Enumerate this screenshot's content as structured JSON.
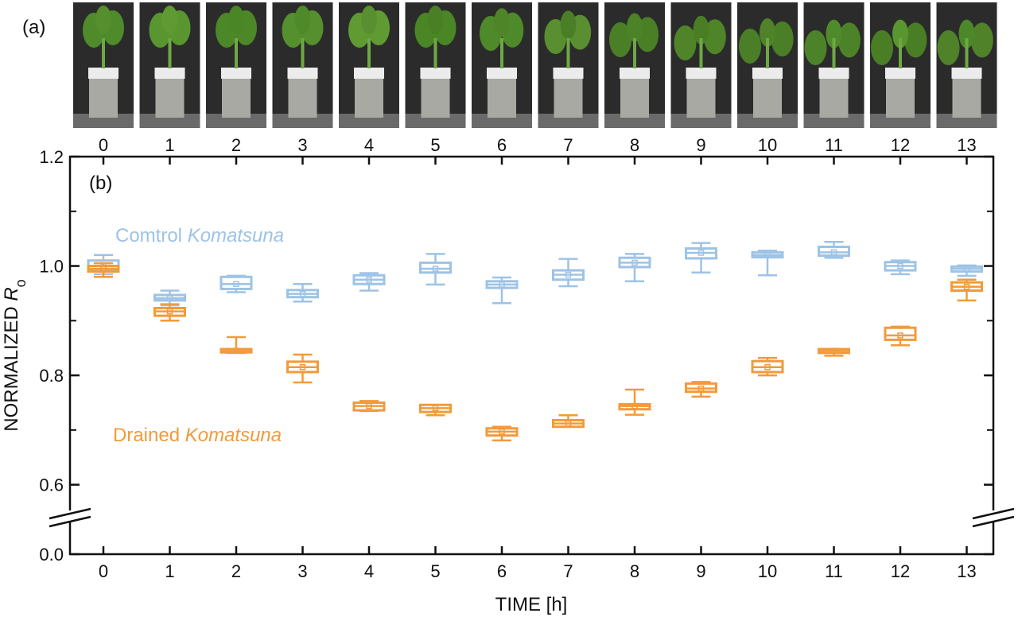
{
  "panel_a_label": "(a)",
  "panel_b_label": "(b)",
  "photo_hours": [
    "0",
    "1",
    "2",
    "3",
    "4",
    "5",
    "6",
    "7",
    "8",
    "9",
    "10",
    "11",
    "12",
    "13"
  ],
  "colors": {
    "control": "#9dc3e6",
    "drained": "#f39a3a",
    "axis": "#111111"
  },
  "chart_data": {
    "type": "box",
    "title": "",
    "xlabel": "TIME [h]",
    "ylabel": "NORMALIZED ",
    "ylabel_symbol": "R",
    "ylabel_sub": "o",
    "categories": [
      0,
      1,
      2,
      3,
      4,
      5,
      6,
      7,
      8,
      9,
      10,
      11,
      12,
      13
    ],
    "ylim_broken": {
      "lower": [
        0.0,
        0.0
      ],
      "upper": [
        0.55,
        1.2
      ]
    },
    "yticks": [
      "0.0",
      "0.6",
      "0.8",
      "1.0",
      "1.2"
    ],
    "xticks": [
      "0",
      "1",
      "2",
      "3",
      "4",
      "5",
      "6",
      "7",
      "8",
      "9",
      "10",
      "11",
      "12",
      "13"
    ],
    "series": [
      {
        "name": "Comtrol",
        "name_italic": "Komatsuna",
        "color": "#9dc3e6",
        "boxes": [
          {
            "min": 0.985,
            "q1": 0.993,
            "median": 1.0,
            "q3": 1.01,
            "max": 1.02
          },
          {
            "min": 0.928,
            "q1": 0.937,
            "median": 0.941,
            "q3": 0.947,
            "max": 0.955
          },
          {
            "min": 0.952,
            "q1": 0.958,
            "median": 0.967,
            "q3": 0.98,
            "max": 0.982
          },
          {
            "min": 0.935,
            "q1": 0.943,
            "median": 0.949,
            "q3": 0.956,
            "max": 0.967
          },
          {
            "min": 0.955,
            "q1": 0.967,
            "median": 0.975,
            "q3": 0.983,
            "max": 0.987
          },
          {
            "min": 0.966,
            "q1": 0.988,
            "median": 0.995,
            "q3": 1.006,
            "max": 1.022
          },
          {
            "min": 0.932,
            "q1": 0.96,
            "median": 0.966,
            "q3": 0.972,
            "max": 0.979
          },
          {
            "min": 0.963,
            "q1": 0.975,
            "median": 0.984,
            "q3": 0.992,
            "max": 1.013
          },
          {
            "min": 0.972,
            "q1": 0.998,
            "median": 1.006,
            "q3": 1.015,
            "max": 1.022
          },
          {
            "min": 0.988,
            "q1": 1.014,
            "median": 1.024,
            "q3": 1.032,
            "max": 1.042
          },
          {
            "min": 0.983,
            "q1": 1.016,
            "median": 1.02,
            "q3": 1.025,
            "max": 1.028
          },
          {
            "min": 1.015,
            "q1": 1.019,
            "median": 1.025,
            "q3": 1.035,
            "max": 1.044
          },
          {
            "min": 0.985,
            "q1": 0.992,
            "median": 1.0,
            "q3": 1.007,
            "max": 1.01
          },
          {
            "min": 0.982,
            "q1": 0.99,
            "median": 0.995,
            "q3": 0.999,
            "max": 1.001
          }
        ]
      },
      {
        "name": "Drained",
        "name_italic": "Komatsuna",
        "color": "#f39a3a",
        "boxes": [
          {
            "min": 0.98,
            "q1": 0.99,
            "median": 0.995,
            "q3": 1.0,
            "max": 1.005
          },
          {
            "min": 0.9,
            "q1": 0.909,
            "median": 0.917,
            "q3": 0.923,
            "max": 0.93
          },
          {
            "min": 0.841,
            "q1": 0.842,
            "median": 0.845,
            "q3": 0.848,
            "max": 0.87
          },
          {
            "min": 0.787,
            "q1": 0.806,
            "median": 0.815,
            "q3": 0.825,
            "max": 0.838
          },
          {
            "min": 0.735,
            "q1": 0.736,
            "median": 0.744,
            "q3": 0.75,
            "max": 0.753
          },
          {
            "min": 0.727,
            "q1": 0.733,
            "median": 0.74,
            "q3": 0.746,
            "max": 0.746
          },
          {
            "min": 0.681,
            "q1": 0.69,
            "median": 0.697,
            "q3": 0.703,
            "max": 0.706
          },
          {
            "min": 0.706,
            "q1": 0.706,
            "median": 0.712,
            "q3": 0.718,
            "max": 0.727
          },
          {
            "min": 0.728,
            "q1": 0.738,
            "median": 0.744,
            "q3": 0.747,
            "max": 0.774
          },
          {
            "min": 0.761,
            "q1": 0.77,
            "median": 0.776,
            "q3": 0.785,
            "max": 0.788
          },
          {
            "min": 0.8,
            "q1": 0.806,
            "median": 0.815,
            "q3": 0.826,
            "max": 0.832
          },
          {
            "min": 0.836,
            "q1": 0.841,
            "median": 0.845,
            "q3": 0.848,
            "max": 0.848
          },
          {
            "min": 0.855,
            "q1": 0.865,
            "median": 0.873,
            "q3": 0.887,
            "max": 0.889
          },
          {
            "min": 0.937,
            "q1": 0.955,
            "median": 0.962,
            "q3": 0.97,
            "max": 0.975
          }
        ]
      }
    ],
    "legend": "in-plot labels"
  }
}
